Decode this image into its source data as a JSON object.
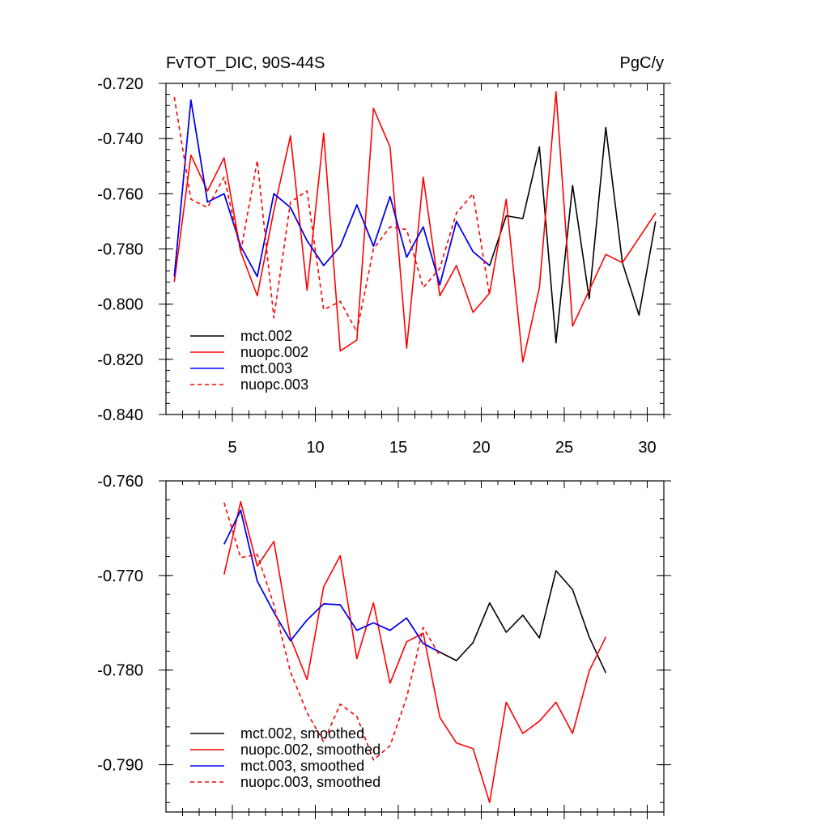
{
  "chart_data": [
    {
      "type": "line",
      "title_left": "FvTOT_DIC, 90S-44S",
      "title_right": "PgC/y",
      "xlabel": "",
      "ylabel": "",
      "xlim": [
        1,
        31
      ],
      "ylim": [
        -0.84,
        -0.72
      ],
      "yticks": [
        -0.72,
        -0.74,
        -0.76,
        -0.78,
        -0.8,
        -0.82,
        -0.84
      ],
      "ytick_labels": [
        "-0.720",
        "-0.740",
        "-0.760",
        "-0.780",
        "-0.800",
        "-0.820",
        "-0.840"
      ],
      "xticks": [
        5,
        10,
        15,
        20,
        25,
        30
      ],
      "xtick_labels": [
        "5",
        "10",
        "15",
        "20",
        "25",
        "30"
      ],
      "legend_position": "bottom-left",
      "series": [
        {
          "name": "mct.002",
          "color": "#000000",
          "dash": "solid",
          "x": [
            1.5,
            2.5,
            3.5,
            4.5,
            5.5,
            6.5,
            7.5,
            8.5,
            9.5,
            10.5,
            11.5,
            12.5,
            13.5,
            14.5,
            15.5,
            16.5,
            17.5,
            18.5,
            19.5,
            20.5,
            21.5,
            22.5,
            23.5,
            24.5,
            25.5,
            26.5,
            27.5,
            28.5,
            29.5,
            30.5
          ],
          "values": [
            -0.79,
            -0.726,
            -0.763,
            -0.76,
            -0.779,
            -0.79,
            -0.76,
            -0.765,
            -0.777,
            -0.786,
            -0.779,
            -0.764,
            -0.779,
            -0.761,
            -0.783,
            -0.772,
            -0.793,
            -0.77,
            -0.781,
            -0.786,
            -0.768,
            -0.769,
            -0.743,
            -0.814,
            -0.757,
            -0.798,
            -0.736,
            -0.785,
            -0.804,
            -0.77
          ]
        },
        {
          "name": "nuopc.002",
          "color": "#ff0000",
          "dash": "solid",
          "x": [
            1.5,
            2.5,
            3.5,
            4.5,
            5.5,
            6.5,
            7.5,
            8.5,
            9.5,
            10.5,
            11.5,
            12.5,
            13.5,
            14.5,
            15.5,
            16.5,
            17.5,
            18.5,
            19.5,
            20.5,
            21.5,
            22.5,
            23.5,
            24.5,
            25.5,
            26.5,
            27.5,
            28.5,
            29.5,
            30.5
          ],
          "values": [
            -0.792,
            -0.746,
            -0.759,
            -0.747,
            -0.781,
            -0.797,
            -0.766,
            -0.739,
            -0.795,
            -0.738,
            -0.817,
            -0.813,
            -0.729,
            -0.743,
            -0.816,
            -0.754,
            -0.797,
            -0.786,
            -0.803,
            -0.796,
            -0.762,
            -0.821,
            -0.794,
            -0.723,
            -0.808,
            -0.795,
            -0.782,
            -0.785,
            -0.776,
            -0.767
          ]
        },
        {
          "name": "mct.003",
          "color": "#0000ff",
          "dash": "solid",
          "x": [
            1.5,
            2.5,
            3.5,
            4.5,
            5.5,
            6.5,
            7.5,
            8.5,
            9.5,
            10.5,
            11.5,
            12.5,
            13.5,
            14.5,
            15.5,
            16.5,
            17.5,
            18.5,
            19.5,
            20.5
          ],
          "values": [
            -0.79,
            -0.726,
            -0.763,
            -0.76,
            -0.779,
            -0.79,
            -0.76,
            -0.765,
            -0.777,
            -0.786,
            -0.779,
            -0.764,
            -0.779,
            -0.761,
            -0.783,
            -0.772,
            -0.793,
            -0.77,
            -0.781,
            -0.786
          ]
        },
        {
          "name": "nuopc.003",
          "color": "#ff0000",
          "dash": "dashed",
          "x": [
            1.5,
            2.5,
            3.5,
            4.5,
            5.5,
            6.5,
            7.5,
            8.5,
            9.5,
            10.5,
            11.5,
            12.5,
            13.5,
            14.5,
            15.5,
            16.5,
            17.5,
            18.5,
            19.5,
            20.5
          ],
          "values": [
            -0.725,
            -0.762,
            -0.765,
            -0.754,
            -0.781,
            -0.748,
            -0.805,
            -0.763,
            -0.759,
            -0.802,
            -0.799,
            -0.81,
            -0.78,
            -0.772,
            -0.773,
            -0.794,
            -0.787,
            -0.767,
            -0.76,
            -0.797
          ]
        }
      ]
    },
    {
      "type": "line",
      "xlabel": "",
      "ylabel": "",
      "xlim": [
        1,
        31
      ],
      "ylim": [
        -0.795,
        -0.76
      ],
      "yticks": [
        -0.76,
        -0.77,
        -0.78,
        -0.79
      ],
      "ytick_labels": [
        "-0.760",
        "-0.770",
        "-0.780",
        "-0.790"
      ],
      "xticks": [
        5,
        10,
        15,
        20,
        25,
        30
      ],
      "legend_position": "bottom-left",
      "series": [
        {
          "name": "mct.002, smoothed",
          "color": "#000000",
          "dash": "solid",
          "x": [
            4.5,
            5.5,
            6.5,
            7.5,
            8.5,
            9.5,
            10.5,
            11.5,
            12.5,
            13.5,
            14.5,
            15.5,
            16.5,
            17.5,
            18.5,
            19.5,
            20.5,
            21.5,
            22.5,
            23.5,
            24.5,
            25.5,
            26.5,
            27.5
          ],
          "values": [
            -0.7667,
            -0.7631,
            -0.7706,
            -0.7739,
            -0.7769,
            -0.7747,
            -0.773,
            -0.7731,
            -0.7758,
            -0.775,
            -0.7758,
            -0.7745,
            -0.7772,
            -0.7781,
            -0.779,
            -0.7771,
            -0.7729,
            -0.776,
            -0.7742,
            -0.7766,
            -0.7695,
            -0.7715,
            -0.7765,
            -0.7803
          ]
        },
        {
          "name": "nuopc.002, smoothed",
          "color": "#ff0000",
          "dash": "solid",
          "x": [
            4.5,
            5.5,
            6.5,
            7.5,
            8.5,
            9.5,
            10.5,
            11.5,
            12.5,
            13.5,
            14.5,
            15.5,
            16.5,
            17.5,
            18.5,
            19.5,
            20.5,
            21.5,
            22.5,
            23.5,
            24.5,
            25.5,
            26.5,
            27.5
          ],
          "values": [
            -0.7699,
            -0.7622,
            -0.769,
            -0.7664,
            -0.7766,
            -0.781,
            -0.7712,
            -0.7679,
            -0.7788,
            -0.7729,
            -0.7814,
            -0.777,
            -0.7761,
            -0.785,
            -0.7877,
            -0.7883,
            -0.794,
            -0.7834,
            -0.7867,
            -0.7854,
            -0.7834,
            -0.7867,
            -0.7801,
            -0.7765
          ]
        },
        {
          "name": "mct.003, smoothed",
          "color": "#0000ff",
          "dash": "solid",
          "x": [
            4.5,
            5.5,
            6.5,
            7.5,
            8.5,
            9.5,
            10.5,
            11.5,
            12.5,
            13.5,
            14.5,
            15.5,
            16.5,
            17.5
          ],
          "values": [
            -0.7667,
            -0.7631,
            -0.7706,
            -0.7739,
            -0.7769,
            -0.7747,
            -0.773,
            -0.7731,
            -0.7758,
            -0.775,
            -0.7758,
            -0.7745,
            -0.7772,
            -0.7781
          ]
        },
        {
          "name": "nuopc.003, smoothed",
          "color": "#ff0000",
          "dash": "dashed",
          "x": [
            4.5,
            5.5,
            6.5,
            7.5,
            8.5,
            9.5,
            10.5,
            11.5,
            12.5,
            13.5,
            14.5,
            15.5,
            16.5,
            17.5
          ],
          "values": [
            -0.7623,
            -0.7681,
            -0.7678,
            -0.7731,
            -0.7802,
            -0.7845,
            -0.7876,
            -0.7836,
            -0.7849,
            -0.7895,
            -0.788,
            -0.7829,
            -0.7755,
            -0.7785
          ]
        }
      ]
    }
  ]
}
